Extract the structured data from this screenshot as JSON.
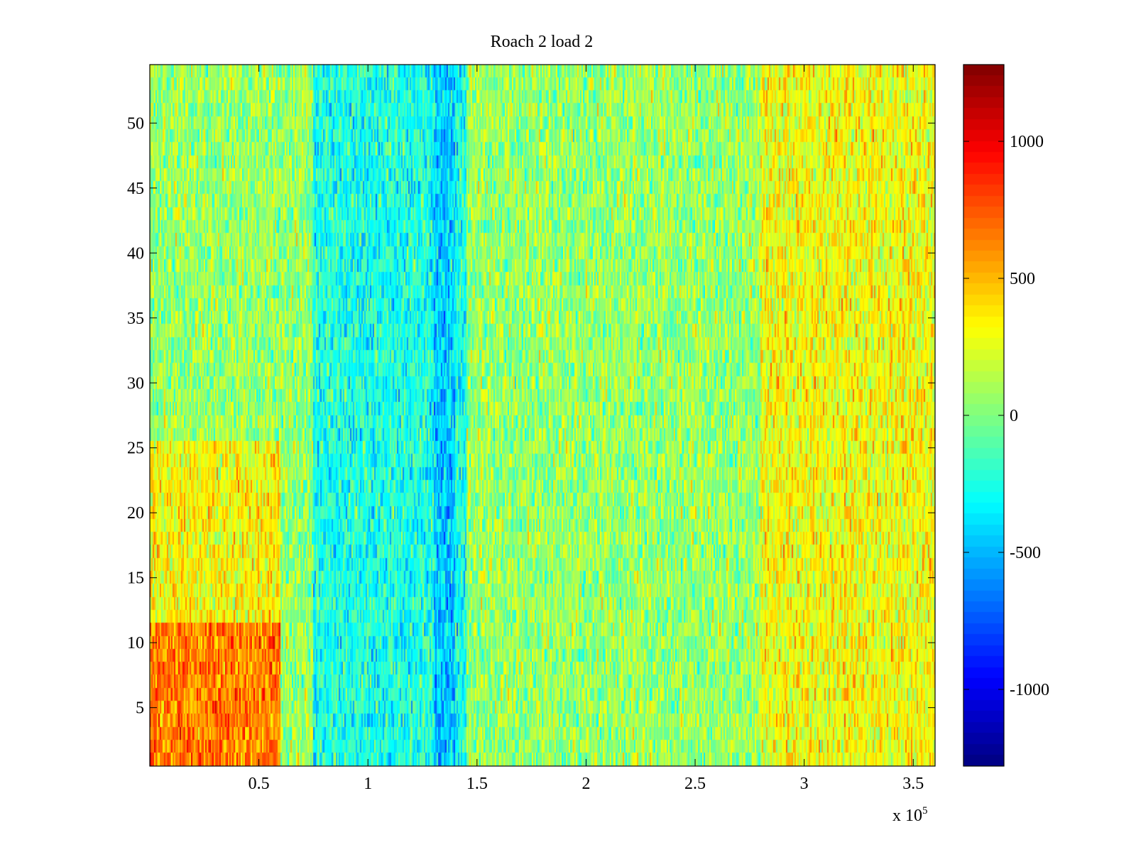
{
  "chart_data": {
    "type": "heatmap",
    "title": "Roach 2 load 2",
    "xlabel": "",
    "ylabel": "",
    "x_range": [
      0,
      360000
    ],
    "y_range": [
      0.5,
      54.5
    ],
    "rows": 54,
    "x_ticks": [
      0.5,
      1,
      1.5,
      2,
      2.5,
      3,
      3.5
    ],
    "x_tick_labels": [
      "0.5",
      "1",
      "1.5",
      "2",
      "2.5",
      "3",
      "3.5"
    ],
    "x_multiplier_label": "x 10",
    "x_multiplier_exponent": "5",
    "y_ticks": [
      5,
      10,
      15,
      20,
      25,
      30,
      35,
      40,
      45,
      50
    ],
    "y_tick_labels": [
      "5",
      "10",
      "15",
      "20",
      "25",
      "30",
      "35",
      "40",
      "45",
      "50"
    ],
    "colorbar": {
      "colormap": "jet",
      "range": [
        -1280,
        1280
      ],
      "ticks": [
        1000,
        500,
        0,
        -500,
        -1000
      ],
      "tick_labels": [
        "1000",
        "500",
        "0",
        "-500",
        "-1000"
      ]
    },
    "regions": [
      {
        "x": [
          0,
          60000
        ],
        "y": [
          0.5,
          11.5
        ],
        "mean": 650
      },
      {
        "x": [
          0,
          60000
        ],
        "y": [
          11.5,
          25.5
        ],
        "mean": 320
      },
      {
        "x": [
          75000,
          145000
        ],
        "y": [
          0.5,
          54.5
        ],
        "mean": -250
      },
      {
        "x": [
          130000,
          140000
        ],
        "y": [
          0.5,
          54.5
        ],
        "mean": -450
      },
      {
        "x": [
          280000,
          360000
        ],
        "y": [
          0.5,
          54.5
        ],
        "mean": 300
      }
    ],
    "grid": false,
    "legend": "none"
  }
}
